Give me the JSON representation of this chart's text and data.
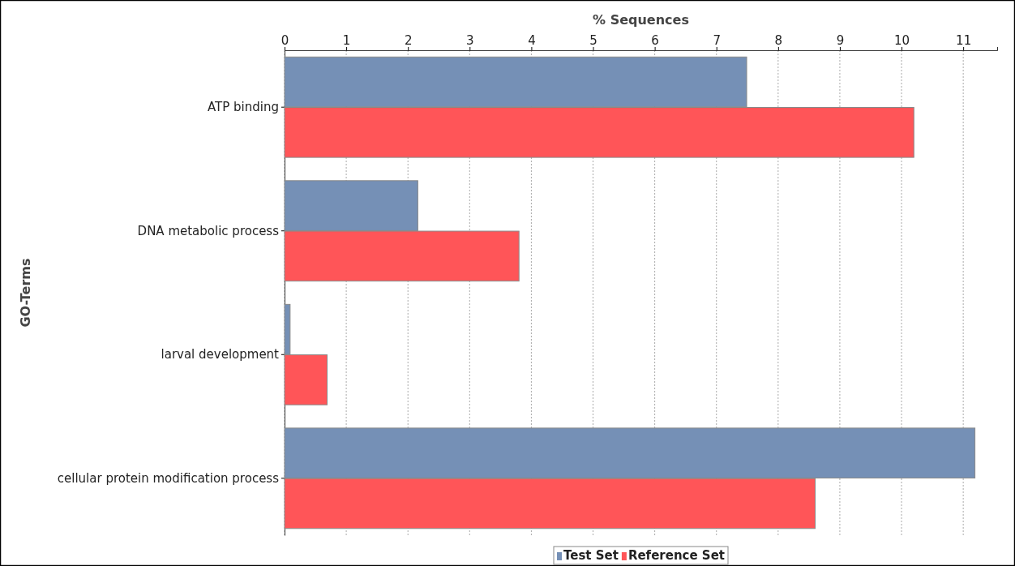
{
  "chart_data": {
    "type": "bar",
    "orientation": "horizontal",
    "xlabel": "% Sequences",
    "ylabel": "GO-Terms",
    "categories": [
      "ATP binding",
      "DNA metabolic process",
      "larval development",
      "cellular protein modification process"
    ],
    "series": [
      {
        "name": "Test Set",
        "color": "#7590b6",
        "values": [
          7.49,
          2.16,
          0.09,
          11.19
        ]
      },
      {
        "name": "Reference Set",
        "color": "#ff5558",
        "values": [
          10.2,
          3.8,
          0.69,
          8.6
        ]
      }
    ],
    "xlim": [
      0,
      11.55
    ],
    "xticks": [
      0,
      1,
      2,
      3,
      4,
      5,
      6,
      7,
      8,
      9,
      10,
      11
    ],
    "grid": "x",
    "legend": "bottom"
  }
}
